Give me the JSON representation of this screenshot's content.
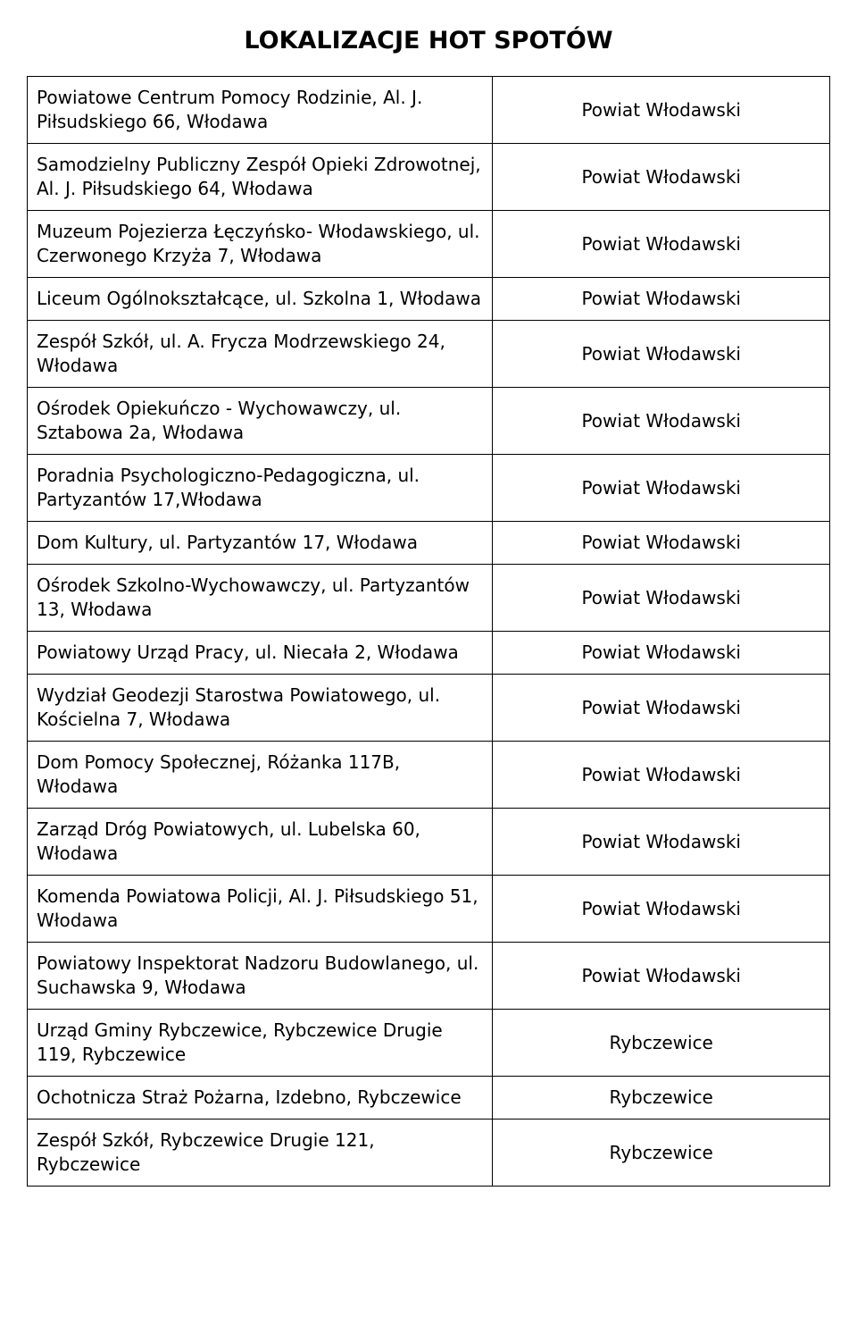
{
  "title": "LOKALIZACJE HOT SPOTÓW",
  "table": {
    "rows": [
      {
        "location": "Powiatowe Centrum Pomocy Rodzinie, Al. J. Piłsudskiego 66, Włodawa",
        "district": "Powiat Włodawski"
      },
      {
        "location": "Samodzielny Publiczny Zespół Opieki Zdrowotnej, Al. J. Piłsudskiego 64, Włodawa",
        "district": "Powiat Włodawski"
      },
      {
        "location": "Muzeum Pojezierza Łęczyńsko- Włodawskiego, ul. Czerwonego Krzyża 7, Włodawa",
        "district": "Powiat Włodawski"
      },
      {
        "location": "Liceum Ogólnokształcące, ul. Szkolna 1, Włodawa",
        "district": "Powiat Włodawski"
      },
      {
        "location": "Zespół Szkół, ul. A. Frycza Modrzewskiego 24, Włodawa",
        "district": "Powiat Włodawski"
      },
      {
        "location": "Ośrodek Opiekuńczo - Wychowawczy, ul. Sztabowa 2a, Włodawa",
        "district": "Powiat Włodawski"
      },
      {
        "location": "Poradnia Psychologiczno-Pedagogiczna, ul. Partyzantów 17,Włodawa",
        "district": "Powiat Włodawski"
      },
      {
        "location": "Dom Kultury, ul. Partyzantów 17, Włodawa",
        "district": "Powiat Włodawski"
      },
      {
        "location": "Ośrodek Szkolno-Wychowawczy, ul. Partyzantów 13, Włodawa",
        "district": "Powiat Włodawski"
      },
      {
        "location": "Powiatowy Urząd Pracy, ul. Niecała 2, Włodawa",
        "district": "Powiat Włodawski"
      },
      {
        "location": "Wydział Geodezji Starostwa Powiatowego, ul. Kościelna 7, Włodawa",
        "district": "Powiat Włodawski"
      },
      {
        "location": "Dom Pomocy Społecznej, Różanka 117B, Włodawa",
        "district": "Powiat Włodawski"
      },
      {
        "location": "Zarząd Dróg Powiatowych, ul. Lubelska 60, Włodawa",
        "district": "Powiat Włodawski"
      },
      {
        "location": "Komenda Powiatowa Policji, Al. J. Piłsudskiego 51, Włodawa",
        "district": "Powiat Włodawski"
      },
      {
        "location": "Powiatowy Inspektorat Nadzoru Budowlanego, ul. Suchawska 9, Włodawa",
        "district": "Powiat Włodawski"
      },
      {
        "location": "Urząd Gminy Rybczewice, Rybczewice Drugie 119, Rybczewice",
        "district": "Rybczewice"
      },
      {
        "location": "Ochotnicza Straż Pożarna, Izdebno, Rybczewice",
        "district": "Rybczewice"
      },
      {
        "location": "Zespół Szkół, Rybczewice Drugie 121, Rybczewice",
        "district": "Rybczewice"
      }
    ]
  },
  "style": {
    "title_fontsize": 27,
    "cell_fontsize": 20,
    "border_color": "#000000",
    "background_color": "#ffffff",
    "text_color": "#000000",
    "left_col_width_pct": 58,
    "right_col_width_pct": 42
  }
}
